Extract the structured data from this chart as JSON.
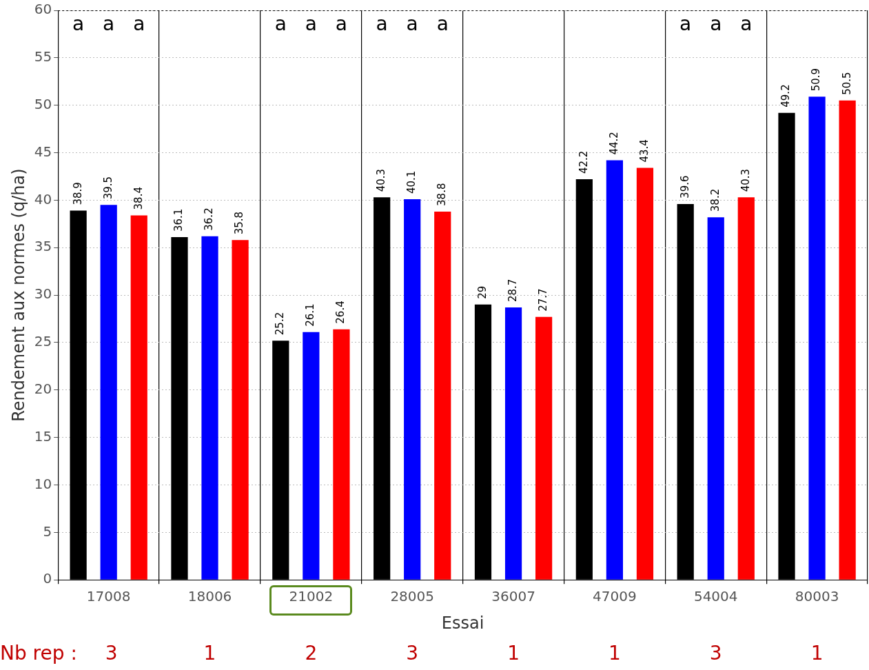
{
  "chart_data": {
    "type": "bar",
    "xlabel": "Essai",
    "ylabel": "Rendement aux normes (q/ha)",
    "categories": [
      "17008",
      "18006",
      "21002",
      "28005",
      "36007",
      "47009",
      "54004",
      "80003"
    ],
    "series": [
      {
        "color": "#000000",
        "values": [
          38.9,
          36.1,
          25.2,
          40.3,
          29,
          42.2,
          39.6,
          49.2
        ]
      },
      {
        "color": "#0000ff",
        "values": [
          39.5,
          36.2,
          26.1,
          40.1,
          28.7,
          44.2,
          38.2,
          50.9
        ]
      },
      {
        "color": "#ff0000",
        "values": [
          38.4,
          35.8,
          26.4,
          38.8,
          27.7,
          43.4,
          40.3,
          50.5
        ]
      }
    ],
    "ylim": [
      0,
      60
    ],
    "yticks": [
      0,
      5,
      10,
      15,
      20,
      25,
      30,
      35,
      40,
      45,
      50,
      55,
      60
    ],
    "grid": true,
    "legend": false,
    "data_labels": true,
    "annotations": [
      "a a a",
      "a a a",
      "a a a",
      "a a a",
      "Nb rep : 3 1 2 3 1 1 3 1"
    ]
  }
}
